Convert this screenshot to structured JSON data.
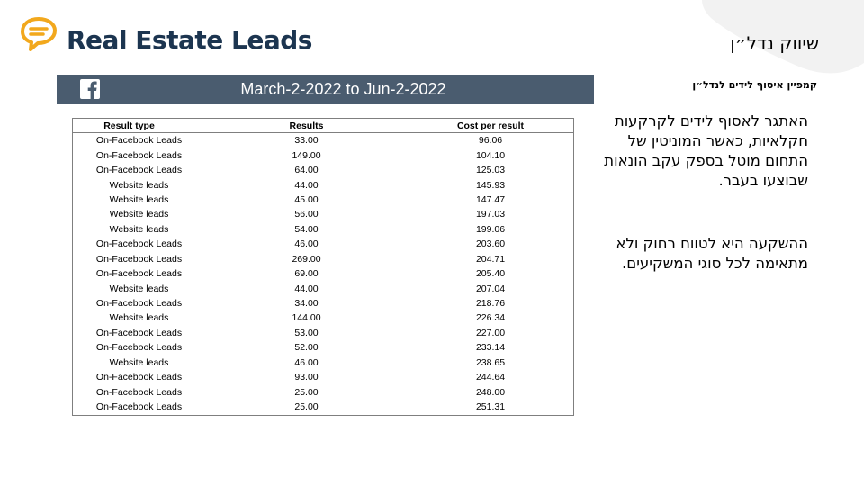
{
  "header": {
    "title": "Real Estate Leads",
    "hebrew_title": "שיווק נדל״ן"
  },
  "sidebar_text": {
    "campaign_label": "קמפיין איסוף לידים לנדל״ן",
    "paragraph1": "האתגר לאסוף לידים לקרקעות חקלאיות, כאשר המוניטין של התחום מוטל בספק עקב הונאות שבוצעו בעבר.",
    "paragraph2": "ההשקעה היא לטווח רחוק ולא מתאימה לכל סוגי המשקיעים."
  },
  "report": {
    "date_range": "March-2-2022 to Jun-2-2022",
    "columns": [
      "Result type",
      "Results",
      "Cost per result"
    ],
    "rows": [
      [
        "On-Facebook Leads",
        "33.00",
        "96.06"
      ],
      [
        "On-Facebook Leads",
        "149.00",
        "104.10"
      ],
      [
        "On-Facebook Leads",
        "64.00",
        "125.03"
      ],
      [
        "Website leads",
        "44.00",
        "145.93"
      ],
      [
        "Website leads",
        "45.00",
        "147.47"
      ],
      [
        "Website leads",
        "56.00",
        "197.03"
      ],
      [
        "Website leads",
        "54.00",
        "199.06"
      ],
      [
        "On-Facebook Leads",
        "46.00",
        "203.60"
      ],
      [
        "On-Facebook Leads",
        "269.00",
        "204.71"
      ],
      [
        "On-Facebook Leads",
        "69.00",
        "205.40"
      ],
      [
        "Website leads",
        "44.00",
        "207.04"
      ],
      [
        "On-Facebook Leads",
        "34.00",
        "218.76"
      ],
      [
        "Website leads",
        "144.00",
        "226.34"
      ],
      [
        "On-Facebook Leads",
        "53.00",
        "227.00"
      ],
      [
        "On-Facebook Leads",
        "52.00",
        "233.14"
      ],
      [
        "Website leads",
        "46.00",
        "238.65"
      ],
      [
        "On-Facebook Leads",
        "93.00",
        "244.64"
      ],
      [
        "On-Facebook Leads",
        "25.00",
        "248.00"
      ],
      [
        "On-Facebook Leads",
        "25.00",
        "251.31"
      ]
    ]
  },
  "colors": {
    "title": "#1c3550",
    "logo": "#f2a81d",
    "bar": "#4a5c6f",
    "corner": "#f2f2f2"
  },
  "icons": [
    "speech-bubble-logo-icon",
    "facebook-icon"
  ]
}
